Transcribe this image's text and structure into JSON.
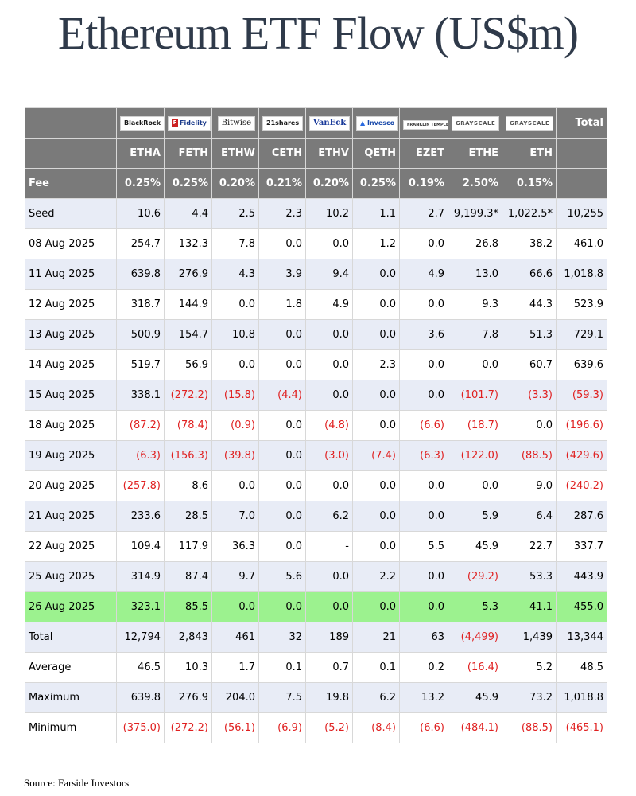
{
  "title": "Ethereum ETF Flow (US$m)",
  "source": "Source: Farside Investors",
  "colors": {
    "header_bg": "#7a7a7a",
    "row_alt": "#e8ecf6",
    "highlight": "#9cf28f",
    "negative": "#e02020"
  },
  "issuers": [
    {
      "name": "BlackRock",
      "logo": "BlackRock"
    },
    {
      "name": "Fidelity",
      "logo": "Fidelity"
    },
    {
      "name": "Bitwise",
      "logo": "Bitwise"
    },
    {
      "name": "21shares",
      "logo": "21shares"
    },
    {
      "name": "VanEck",
      "logo": "VanEck"
    },
    {
      "name": "Invesco",
      "logo": "Invesco"
    },
    {
      "name": "Franklin Templeton",
      "logo": "FRANKLIN TEMPLETON"
    },
    {
      "name": "Grayscale",
      "logo": "GRAYSCALE"
    },
    {
      "name": "Grayscale",
      "logo": "GRAYSCALE"
    }
  ],
  "total_label": "Total",
  "tickers": [
    "ETHA",
    "FETH",
    "ETHW",
    "CETH",
    "ETHV",
    "QETH",
    "EZET",
    "ETHE",
    "ETH"
  ],
  "fee_label": "Fee",
  "fees": [
    "0.25%",
    "0.25%",
    "0.20%",
    "0.21%",
    "0.20%",
    "0.25%",
    "0.19%",
    "2.50%",
    "0.15%"
  ],
  "rows": [
    {
      "date": "Seed",
      "values": [
        "10.6",
        "4.4",
        "2.5",
        "2.3",
        "10.2",
        "1.1",
        "2.7",
        "9,199.3*",
        "1,022.5*"
      ],
      "total": "10,255"
    },
    {
      "date": "08 Aug 2025",
      "values": [
        "254.7",
        "132.3",
        "7.8",
        "0.0",
        "0.0",
        "1.2",
        "0.0",
        "26.8",
        "38.2"
      ],
      "total": "461.0"
    },
    {
      "date": "11 Aug 2025",
      "values": [
        "639.8",
        "276.9",
        "4.3",
        "3.9",
        "9.4",
        "0.0",
        "4.9",
        "13.0",
        "66.6"
      ],
      "total": "1,018.8"
    },
    {
      "date": "12 Aug 2025",
      "values": [
        "318.7",
        "144.9",
        "0.0",
        "1.8",
        "4.9",
        "0.0",
        "0.0",
        "9.3",
        "44.3"
      ],
      "total": "523.9"
    },
    {
      "date": "13 Aug 2025",
      "values": [
        "500.9",
        "154.7",
        "10.8",
        "0.0",
        "0.0",
        "0.0",
        "3.6",
        "7.8",
        "51.3"
      ],
      "total": "729.1"
    },
    {
      "date": "14 Aug 2025",
      "values": [
        "519.7",
        "56.9",
        "0.0",
        "0.0",
        "0.0",
        "2.3",
        "0.0",
        "0.0",
        "60.7"
      ],
      "total": "639.6"
    },
    {
      "date": "15 Aug 2025",
      "values": [
        "338.1",
        "(272.2)",
        "(15.8)",
        "(4.4)",
        "0.0",
        "0.0",
        "0.0",
        "(101.7)",
        "(3.3)"
      ],
      "total": "(59.3)"
    },
    {
      "date": "18 Aug 2025",
      "values": [
        "(87.2)",
        "(78.4)",
        "(0.9)",
        "0.0",
        "(4.8)",
        "0.0",
        "(6.6)",
        "(18.7)",
        "0.0"
      ],
      "total": "(196.6)"
    },
    {
      "date": "19 Aug 2025",
      "values": [
        "(6.3)",
        "(156.3)",
        "(39.8)",
        "0.0",
        "(3.0)",
        "(7.4)",
        "(6.3)",
        "(122.0)",
        "(88.5)"
      ],
      "total": "(429.6)"
    },
    {
      "date": "20 Aug 2025",
      "values": [
        "(257.8)",
        "8.6",
        "0.0",
        "0.0",
        "0.0",
        "0.0",
        "0.0",
        "0.0",
        "9.0"
      ],
      "total": "(240.2)"
    },
    {
      "date": "21 Aug 2025",
      "values": [
        "233.6",
        "28.5",
        "7.0",
        "0.0",
        "6.2",
        "0.0",
        "0.0",
        "5.9",
        "6.4"
      ],
      "total": "287.6"
    },
    {
      "date": "22 Aug 2025",
      "values": [
        "109.4",
        "117.9",
        "36.3",
        "0.0",
        "-",
        "0.0",
        "5.5",
        "45.9",
        "22.7"
      ],
      "total": "337.7"
    },
    {
      "date": "25 Aug 2025",
      "values": [
        "314.9",
        "87.4",
        "9.7",
        "5.6",
        "0.0",
        "2.2",
        "0.0",
        "(29.2)",
        "53.3"
      ],
      "total": "443.9"
    },
    {
      "date": "26 Aug 2025",
      "values": [
        "323.1",
        "85.5",
        "0.0",
        "0.0",
        "0.0",
        "0.0",
        "0.0",
        "5.3",
        "41.1"
      ],
      "total": "455.0",
      "highlight": true
    },
    {
      "date": "Total",
      "values": [
        "12,794",
        "2,843",
        "461",
        "32",
        "189",
        "21",
        "63",
        "(4,499)",
        "1,439"
      ],
      "total": "13,344"
    },
    {
      "date": "Average",
      "values": [
        "46.5",
        "10.3",
        "1.7",
        "0.1",
        "0.7",
        "0.1",
        "0.2",
        "(16.4)",
        "5.2"
      ],
      "total": "48.5"
    },
    {
      "date": "Maximum",
      "values": [
        "639.8",
        "276.9",
        "204.0",
        "7.5",
        "19.8",
        "6.2",
        "13.2",
        "45.9",
        "73.2"
      ],
      "total": "1,018.8"
    },
    {
      "date": "Minimum",
      "values": [
        "(375.0)",
        "(272.2)",
        "(56.1)",
        "(6.9)",
        "(5.2)",
        "(8.4)",
        "(6.6)",
        "(484.1)",
        "(88.5)"
      ],
      "total": "(465.1)"
    }
  ]
}
